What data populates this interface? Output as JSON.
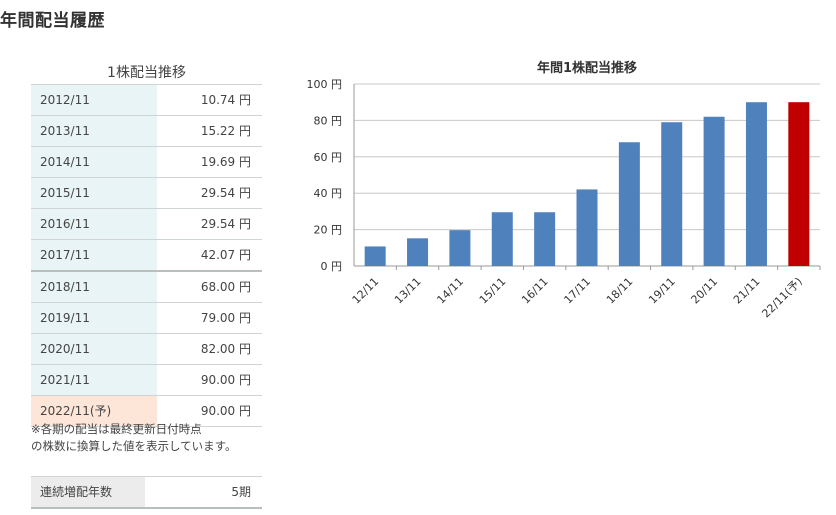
{
  "page_title": "年間配当履歴",
  "table": {
    "caption": "1株配当推移",
    "rows": [
      {
        "year": "2012/11",
        "value": "10.74 円"
      },
      {
        "year": "2013/11",
        "value": "15.22 円"
      },
      {
        "year": "2014/11",
        "value": "19.69 円"
      },
      {
        "year": "2015/11",
        "value": "29.54 円"
      },
      {
        "year": "2016/11",
        "value": "29.54 円"
      },
      {
        "year": "2017/11",
        "value": "42.07 円"
      },
      {
        "year": "2018/11",
        "value": "68.00 円"
      },
      {
        "year": "2019/11",
        "value": "79.00 円"
      },
      {
        "year": "2020/11",
        "value": "82.00 円"
      },
      {
        "year": "2021/11",
        "value": "90.00 円"
      },
      {
        "year": "2022/11(予)",
        "value": "90.00 円"
      }
    ]
  },
  "note": {
    "line1": "※各期の配当は最終更新日付時点",
    "line2": "の株数に換算した値を表示しています。"
  },
  "streak": {
    "label": "連続増配年数",
    "value": "5期"
  },
  "colors": {
    "bar": "#4f81bd",
    "forecast_bar": "#c00000",
    "grid": "#c8c8c8"
  },
  "chart_data": {
    "type": "bar",
    "title": "年間1株配当推移",
    "categories": [
      "12/11",
      "13/11",
      "14/11",
      "15/11",
      "16/11",
      "17/11",
      "18/11",
      "19/11",
      "20/11",
      "21/11",
      "22/11(予)"
    ],
    "values": [
      10.74,
      15.22,
      19.69,
      29.54,
      29.54,
      42.07,
      68.0,
      79.0,
      82.0,
      90.0,
      90.0
    ],
    "forecast_index": 10,
    "ylim": [
      0,
      100
    ],
    "yticks": [
      0,
      20,
      40,
      60,
      80,
      100
    ],
    "ytick_labels": [
      "0 円",
      "20 円",
      "40 円",
      "60 円",
      "80 円",
      "100 円"
    ],
    "grid": true,
    "legend": "none"
  }
}
